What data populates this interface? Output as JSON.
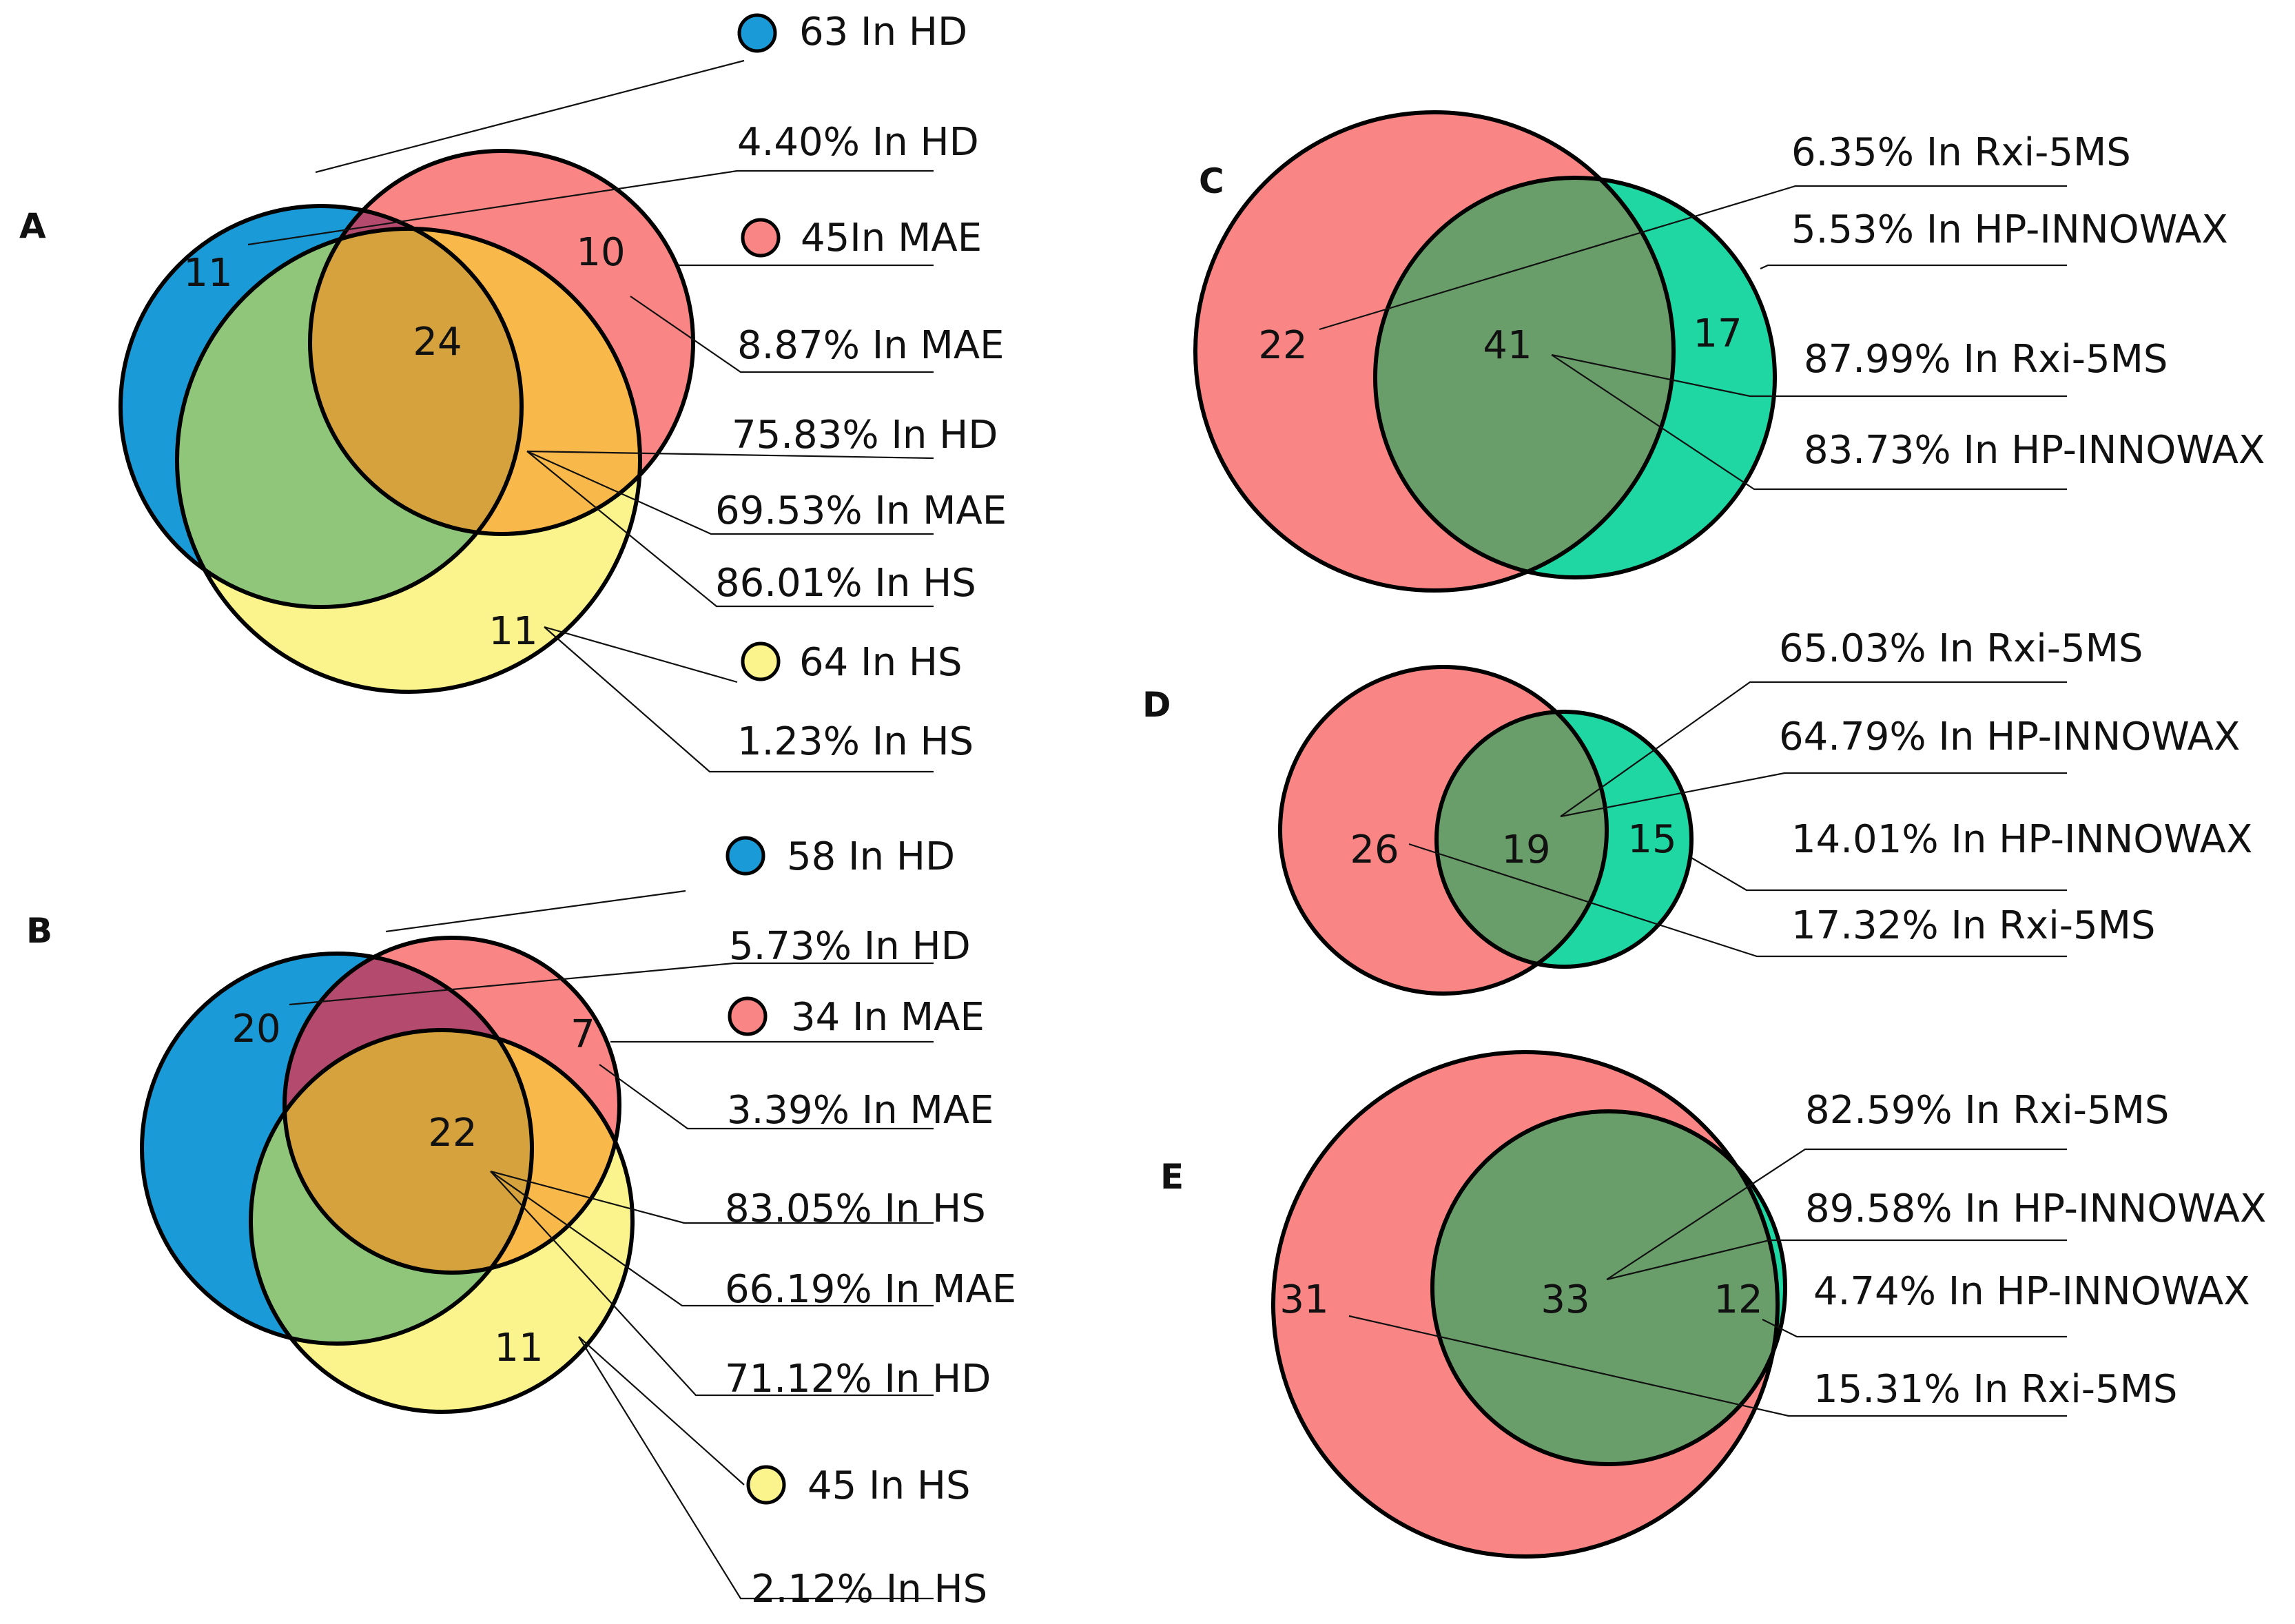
{
  "colors": {
    "hd": "#1a9ad6",
    "mae": "#f98585",
    "hs": "#fbf48c",
    "green": "#1ed7a3",
    "hd_mae": "#b44a6e",
    "hd_hs": "#8fc67a",
    "center": "#d6a23e",
    "mae_hs": "#f9b84a",
    "cd_overlap": "#699e6a"
  },
  "panels": {
    "A": {
      "letter": "A",
      "legend_hd": "63 In HD",
      "legend_mae": "45In MAE",
      "legend_hs": "64 In HS",
      "regions": {
        "hd_only": "11",
        "mae_only": "10",
        "center": "24",
        "hs_only": "11"
      },
      "pct_hd_only": "4.40% In HD",
      "pct_mae_only": "8.87% In MAE",
      "pct_center_1": "75.83% In HD",
      "pct_center_2": "69.53% In MAE",
      "pct_center_3": "86.01% In HS",
      "pct_hs_only": "1.23% In HS"
    },
    "B": {
      "letter": "B",
      "legend_hd": "58 In HD",
      "legend_mae": "34 In MAE",
      "legend_hs": "45 In HS",
      "regions": {
        "hd_only": "20",
        "mae_only": "7",
        "center": "22",
        "hs_only": "11"
      },
      "pct_hd_only": "5.73% In HD",
      "pct_mae_only": "3.39% In MAE",
      "pct_center_1": "83.05% In HS",
      "pct_center_2": "66.19% In MAE",
      "pct_center_3": "71.12% In HD",
      "pct_hs_only": "2.12% In HS"
    },
    "C": {
      "letter": "C",
      "regions": {
        "left": "22",
        "overlap": "41",
        "right": "17"
      },
      "lines": [
        "6.35% In Rxi-5MS",
        "5.53% In HP-INNOWAX",
        "87.99% In Rxi-5MS",
        "83.73% In HP-INNOWAX"
      ]
    },
    "D": {
      "letter": "D",
      "regions": {
        "left": "26",
        "overlap": "19",
        "right": "15"
      },
      "lines": [
        "65.03% In Rxi-5MS",
        "64.79% In HP-INNOWAX",
        "14.01% In HP-INNOWAX",
        "17.32% In Rxi-5MS"
      ]
    },
    "E": {
      "letter": "E",
      "regions": {
        "left": "31",
        "overlap": "33",
        "right": "12"
      },
      "lines": [
        "82.59% In Rxi-5MS",
        "89.58% In HP-INNOWAX",
        "4.74% In HP-INNOWAX",
        "15.31% In Rxi-5MS"
      ]
    }
  }
}
